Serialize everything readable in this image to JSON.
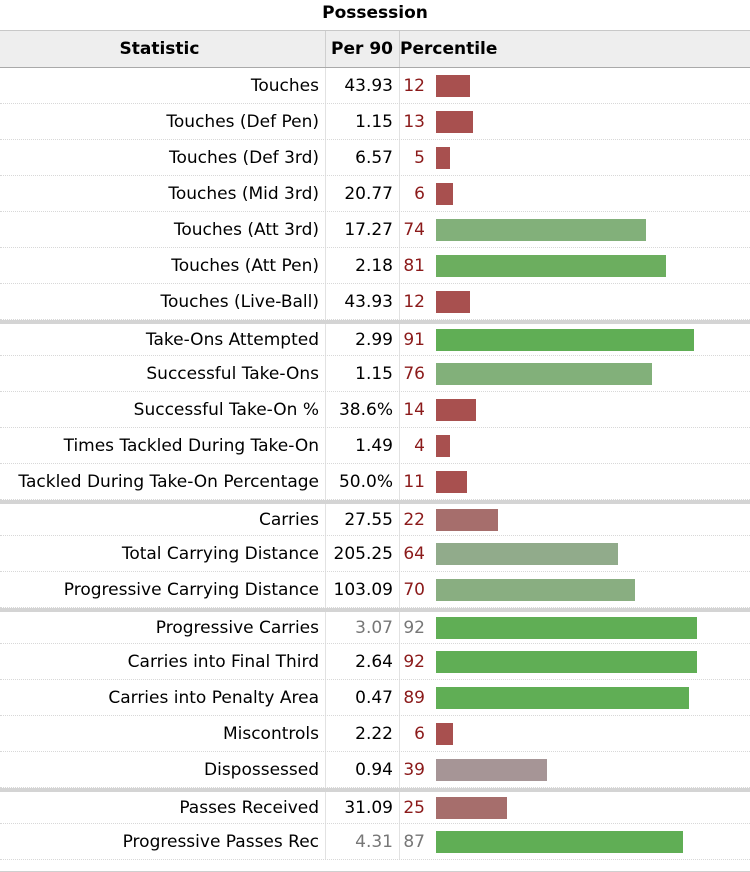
{
  "table": {
    "caption": "Possession",
    "headers": {
      "statistic": "Statistic",
      "per90": "Per 90",
      "percentile": "Percentile"
    },
    "rows": [
      {
        "stat": "Touches",
        "per90": "43.93",
        "pct": "12",
        "pct_value": 12,
        "color": "#a8504f",
        "group_start": false,
        "muted": false
      },
      {
        "stat": "Touches (Def Pen)",
        "per90": "1.15",
        "pct": "13",
        "pct_value": 13,
        "color": "#a8504f",
        "group_start": false,
        "muted": false
      },
      {
        "stat": "Touches (Def 3rd)",
        "per90": "6.57",
        "pct": "5",
        "pct_value": 5,
        "color": "#a8504f",
        "group_start": false,
        "muted": false
      },
      {
        "stat": "Touches (Mid 3rd)",
        "per90": "20.77",
        "pct": "6",
        "pct_value": 6,
        "color": "#a8504f",
        "group_start": false,
        "muted": false
      },
      {
        "stat": "Touches (Att 3rd)",
        "per90": "17.27",
        "pct": "74",
        "pct_value": 74,
        "color": "#82b07a",
        "group_start": false,
        "muted": false
      },
      {
        "stat": "Touches (Att Pen)",
        "per90": "2.18",
        "pct": "81",
        "pct_value": 81,
        "color": "#6cae5f",
        "group_start": false,
        "muted": false
      },
      {
        "stat": "Touches (Live-Ball)",
        "per90": "43.93",
        "pct": "12",
        "pct_value": 12,
        "color": "#a8504f",
        "group_start": false,
        "muted": false
      },
      {
        "stat": "Take-Ons Attempted",
        "per90": "2.99",
        "pct": "91",
        "pct_value": 91,
        "color": "#60ae55",
        "group_start": true,
        "muted": false
      },
      {
        "stat": "Successful Take-Ons",
        "per90": "1.15",
        "pct": "76",
        "pct_value": 76,
        "color": "#82b07a",
        "group_start": false,
        "muted": false
      },
      {
        "stat": "Successful Take-On %",
        "per90": "38.6%",
        "pct": "14",
        "pct_value": 14,
        "color": "#a8504f",
        "group_start": false,
        "muted": false
      },
      {
        "stat": "Times Tackled During Take-On",
        "per90": "1.49",
        "pct": "4",
        "pct_value": 4,
        "color": "#a8504f",
        "group_start": false,
        "muted": false
      },
      {
        "stat": "Tackled During Take-On Percentage",
        "per90": "50.0%",
        "pct": "11",
        "pct_value": 11,
        "color": "#a8504f",
        "group_start": false,
        "muted": false
      },
      {
        "stat": "Carries",
        "per90": "27.55",
        "pct": "22",
        "pct_value": 22,
        "color": "#a66e6c",
        "group_start": true,
        "muted": false
      },
      {
        "stat": "Total Carrying Distance",
        "per90": "205.25",
        "pct": "64",
        "pct_value": 64,
        "color": "#91ab8b",
        "group_start": false,
        "muted": false
      },
      {
        "stat": "Progressive Carrying Distance",
        "per90": "103.09",
        "pct": "70",
        "pct_value": 70,
        "color": "#89ae81",
        "group_start": false,
        "muted": false
      },
      {
        "stat": "Progressive Carries",
        "per90": "3.07",
        "pct": "92",
        "pct_value": 92,
        "color": "#60ae55",
        "group_start": true,
        "muted": true
      },
      {
        "stat": "Carries into Final Third",
        "per90": "2.64",
        "pct": "92",
        "pct_value": 92,
        "color": "#60ae55",
        "group_start": false,
        "muted": false
      },
      {
        "stat": "Carries into Penalty Area",
        "per90": "0.47",
        "pct": "89",
        "pct_value": 89,
        "color": "#60ae55",
        "group_start": false,
        "muted": false
      },
      {
        "stat": "Miscontrols",
        "per90": "2.22",
        "pct": "6",
        "pct_value": 6,
        "color": "#a8504f",
        "group_start": false,
        "muted": false
      },
      {
        "stat": "Dispossessed",
        "per90": "0.94",
        "pct": "39",
        "pct_value": 39,
        "color": "#a69596",
        "group_start": false,
        "muted": false
      },
      {
        "stat": "Passes Received",
        "per90": "31.09",
        "pct": "25",
        "pct_value": 25,
        "color": "#a66e6c",
        "group_start": true,
        "muted": false
      },
      {
        "stat": "Progressive Passes Rec",
        "per90": "4.31",
        "pct": "87",
        "pct_value": 87,
        "color": "#60ae55",
        "group_start": false,
        "muted": true
      }
    ]
  }
}
